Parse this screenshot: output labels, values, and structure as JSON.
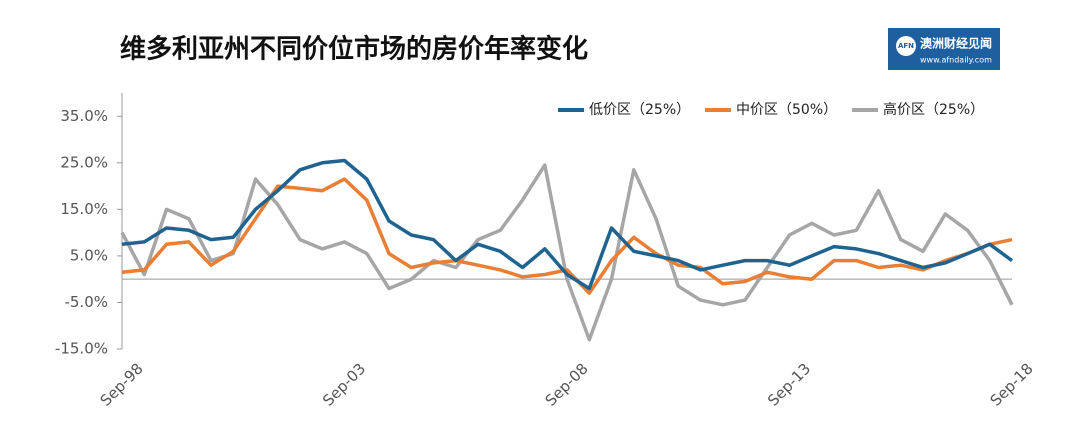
{
  "chart_data": {
    "type": "line",
    "title": "维多利亚州不同价位市场的房价年率变化",
    "categories": [
      "Sep-98",
      null,
      null,
      null,
      null,
      null,
      null,
      null,
      null,
      null,
      "Sep-03",
      null,
      null,
      null,
      null,
      null,
      null,
      null,
      null,
      null,
      "Sep-08",
      null,
      null,
      null,
      null,
      null,
      null,
      null,
      null,
      null,
      "Sep-13",
      null,
      null,
      null,
      null,
      null,
      null,
      null,
      null,
      null,
      "Sep-18"
    ],
    "series": [
      {
        "name": "低价区（25%）",
        "color": "#1f6391",
        "values": [
          7.5,
          8,
          11,
          10.5,
          8.5,
          9,
          15,
          19,
          23.5,
          25,
          25.5,
          21.5,
          12.5,
          9.5,
          8.5,
          4,
          7.5,
          6,
          2.5,
          6.5,
          1,
          -2,
          11,
          6,
          5,
          4,
          2,
          3,
          4,
          4,
          3,
          5,
          7,
          6.5,
          5.5,
          4,
          2.5,
          3.5,
          5.5,
          7.5,
          4
        ]
      },
      {
        "name": "中价区（50%）",
        "color": "#e97e35",
        "values": [
          1.5,
          2,
          7.5,
          8,
          3,
          6,
          13,
          20,
          19.5,
          19,
          21.5,
          17,
          5.5,
          2.5,
          3.5,
          4,
          3,
          2,
          0.5,
          1,
          2,
          -3,
          4,
          9,
          5.5,
          3,
          2.5,
          -1,
          -0.5,
          1.5,
          0.5,
          0,
          4,
          4,
          2.5,
          3,
          2,
          4,
          5.5,
          7.5,
          8.5
        ]
      },
      {
        "name": "高价区（25%）",
        "color": "#a6a6a6",
        "values": [
          10,
          1,
          15,
          13,
          4,
          5.5,
          21.5,
          16,
          8.5,
          6.5,
          8,
          5.5,
          -2,
          0,
          4,
          2.5,
          8.5,
          10.5,
          17,
          24.5,
          0,
          -13,
          0,
          23.5,
          13,
          -1.5,
          -4.5,
          -5.5,
          -4.5,
          2.5,
          9.5,
          12,
          9.5,
          10.5,
          19,
          8.5,
          6,
          14,
          10.5,
          4,
          -5.5
        ]
      }
    ],
    "ylim": [
      -15,
      40
    ],
    "yticks": [
      {
        "value": -15,
        "label": "-15.0%"
      },
      {
        "value": -5,
        "label": "-5.0%"
      },
      {
        "value": 5,
        "label": "5.0%"
      },
      {
        "value": 15,
        "label": "15.0%"
      },
      {
        "value": 25,
        "label": "25.0%"
      },
      {
        "value": 35,
        "label": "35.0%"
      }
    ],
    "grid": false,
    "legend": "upper right"
  },
  "logo": {
    "name": "澳洲财经见闻",
    "url": "www.afndaily.com",
    "mark": "AFN"
  }
}
